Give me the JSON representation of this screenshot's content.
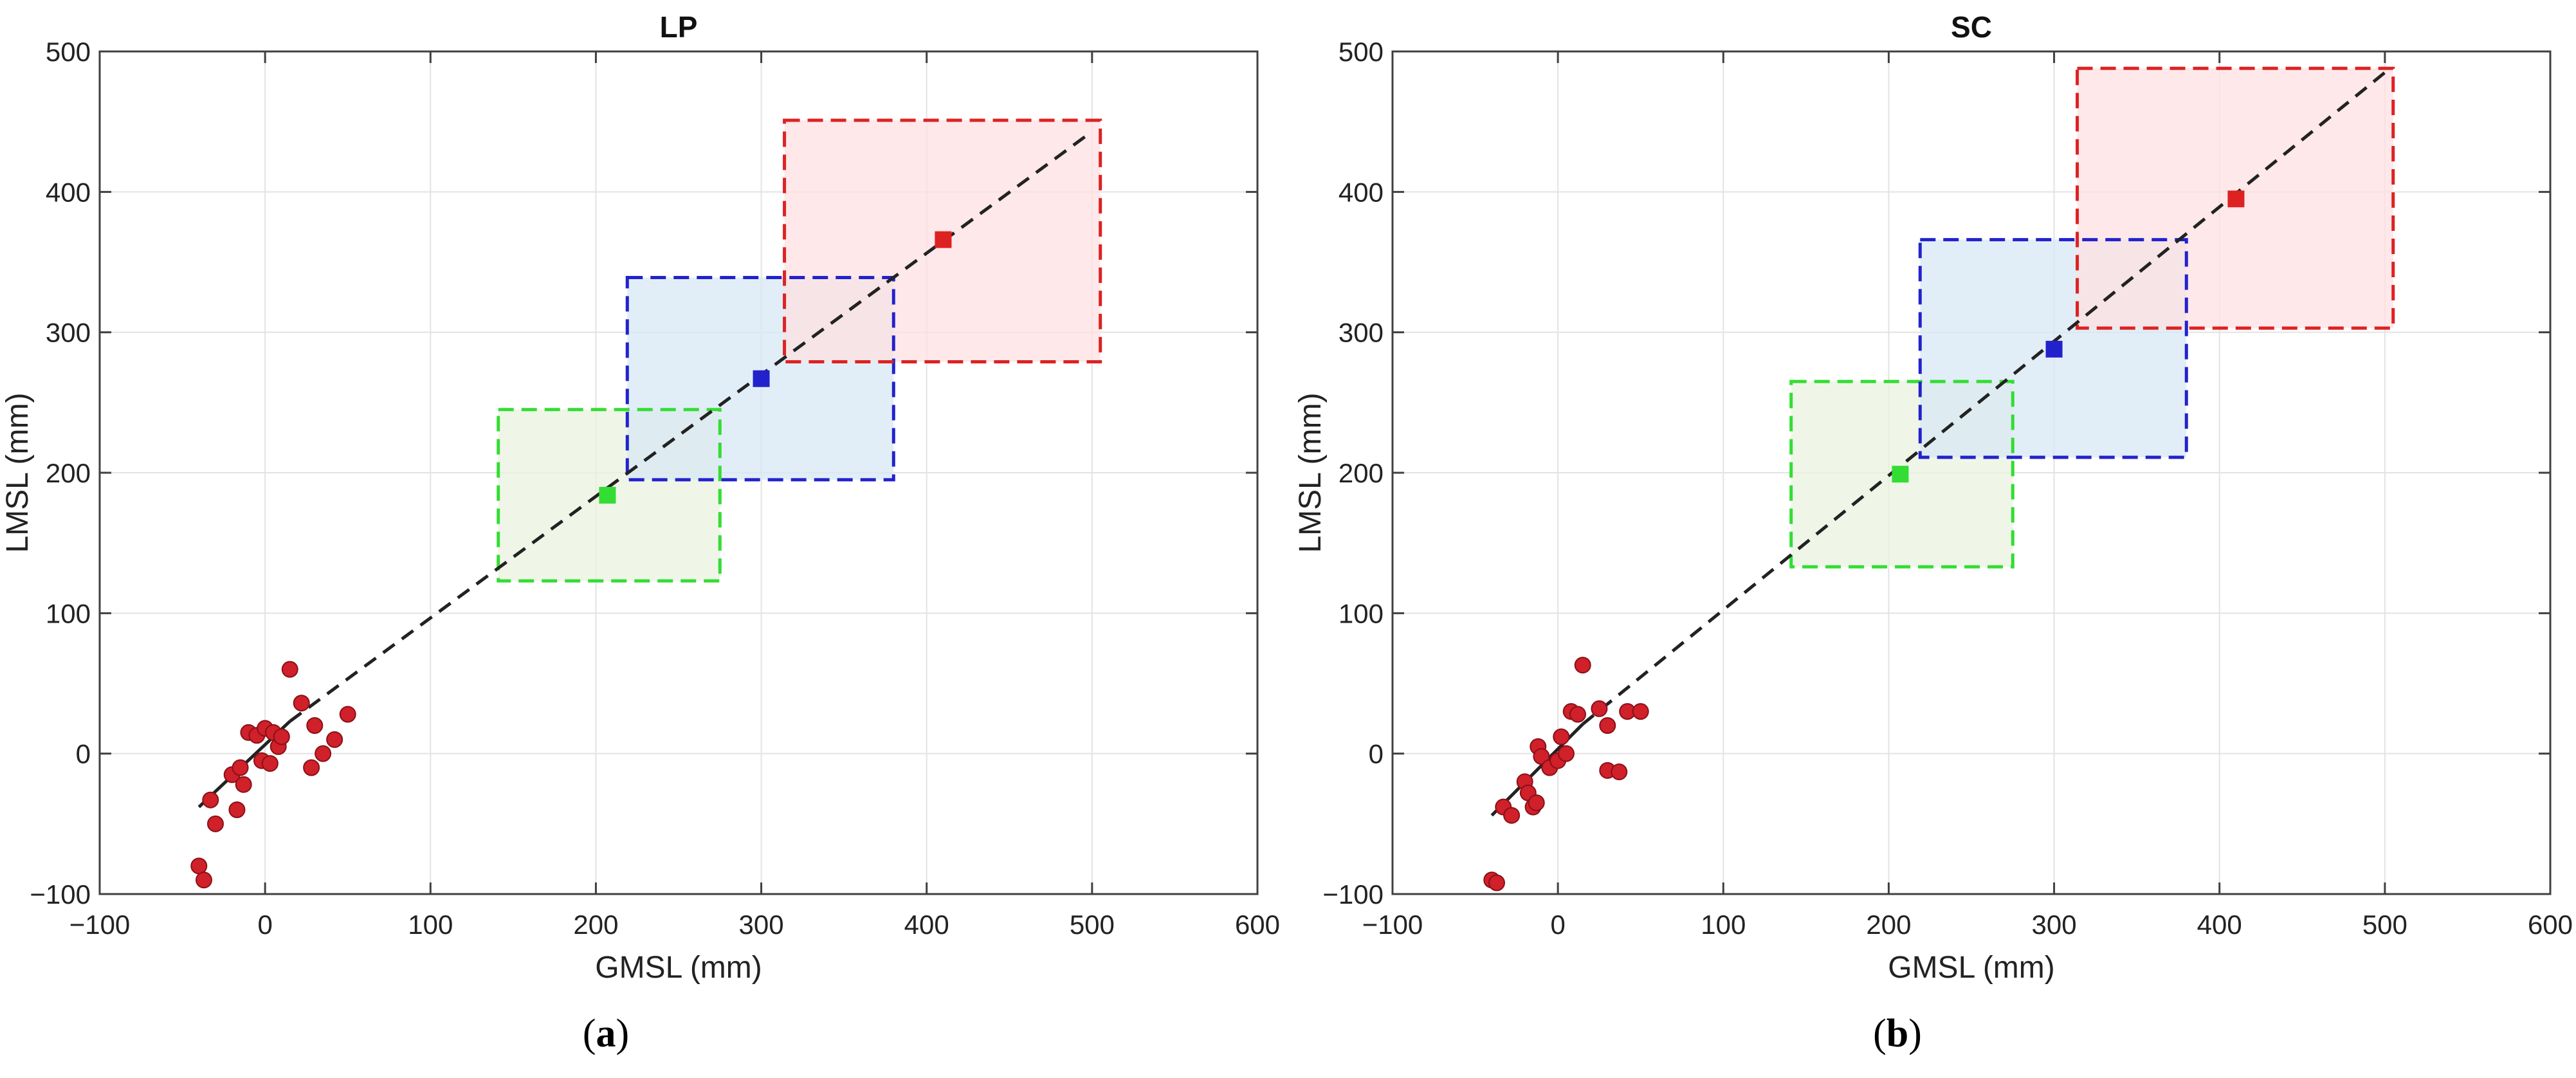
{
  "chart_data": [
    {
      "panel_label": "a",
      "type": "scatter",
      "title": "LP",
      "xlabel": "GMSL (mm)",
      "ylabel": "LMSL (mm)",
      "xlim": [
        -100,
        600
      ],
      "ylim": [
        -100,
        500
      ],
      "xticks": [
        -100,
        0,
        100,
        200,
        300,
        400,
        500,
        600
      ],
      "yticks": [
        -100,
        0,
        100,
        200,
        300,
        400,
        500
      ],
      "grid": true,
      "scatter_points": {
        "color": "#d0202a",
        "points": [
          [
            -40,
            -80
          ],
          [
            -37,
            -90
          ],
          [
            -33,
            -33
          ],
          [
            -30,
            -50
          ],
          [
            -20,
            -15
          ],
          [
            -17,
            -40
          ],
          [
            -15,
            -10
          ],
          [
            -13,
            -22
          ],
          [
            -10,
            15
          ],
          [
            -5,
            13
          ],
          [
            -2,
            -5
          ],
          [
            0,
            18
          ],
          [
            3,
            -7
          ],
          [
            5,
            15
          ],
          [
            8,
            5
          ],
          [
            10,
            12
          ],
          [
            15,
            60
          ],
          [
            22,
            36
          ],
          [
            28,
            -10
          ],
          [
            30,
            20
          ],
          [
            35,
            0
          ],
          [
            42,
            10
          ],
          [
            50,
            28
          ]
        ]
      },
      "fit_line": {
        "color": "#222222",
        "solid": [
          [
            -40,
            -38
          ],
          [
            15,
            23
          ]
        ],
        "dashed": [
          [
            15,
            23
          ],
          [
            500,
            443
          ]
        ]
      },
      "projections": [
        {
          "color": "#33dd33",
          "fill": "#e9f3e0",
          "center": [
            207,
            184
          ],
          "x_range": [
            141,
            275
          ],
          "y_range": [
            123,
            245
          ]
        },
        {
          "color": "#2222cc",
          "fill": "#d8e8f4",
          "center": [
            300,
            267
          ],
          "x_range": [
            219,
            380
          ],
          "y_range": [
            195,
            339
          ]
        },
        {
          "color": "#dd2222",
          "fill": "#fde0e2",
          "center": [
            410,
            366
          ],
          "x_range": [
            314,
            505
          ],
          "y_range": [
            279,
            451
          ]
        }
      ]
    },
    {
      "panel_label": "b",
      "type": "scatter",
      "title": "SC",
      "xlabel": "GMSL (mm)",
      "ylabel": "LMSL (mm)",
      "xlim": [
        -100,
        600
      ],
      "ylim": [
        -100,
        500
      ],
      "xticks": [
        -100,
        0,
        100,
        200,
        300,
        400,
        500,
        600
      ],
      "yticks": [
        -100,
        0,
        100,
        200,
        300,
        400,
        500
      ],
      "grid": true,
      "scatter_points": {
        "color": "#d0202a",
        "points": [
          [
            -40,
            -90
          ],
          [
            -37,
            -92
          ],
          [
            -33,
            -38
          ],
          [
            -28,
            -44
          ],
          [
            -20,
            -20
          ],
          [
            -18,
            -28
          ],
          [
            -15,
            -38
          ],
          [
            -13,
            -35
          ],
          [
            -12,
            5
          ],
          [
            -10,
            -2
          ],
          [
            -5,
            -10
          ],
          [
            0,
            -5
          ],
          [
            2,
            12
          ],
          [
            5,
            0
          ],
          [
            8,
            30
          ],
          [
            12,
            28
          ],
          [
            15,
            63
          ],
          [
            25,
            32
          ],
          [
            30,
            -12
          ],
          [
            30,
            20
          ],
          [
            37,
            -13
          ],
          [
            42,
            30
          ],
          [
            50,
            30
          ]
        ]
      },
      "fit_line": {
        "color": "#222222",
        "solid": [
          [
            -40,
            -44
          ],
          [
            15,
            21
          ]
        ],
        "dashed": [
          [
            15,
            21
          ],
          [
            500,
            485
          ]
        ]
      },
      "projections": [
        {
          "color": "#33dd33",
          "fill": "#e9f3e0",
          "center": [
            207,
            199
          ],
          "x_range": [
            141,
            275
          ],
          "y_range": [
            133,
            265
          ]
        },
        {
          "color": "#2222cc",
          "fill": "#d8e8f4",
          "center": [
            300,
            288
          ],
          "x_range": [
            219,
            380
          ],
          "y_range": [
            211,
            366
          ]
        },
        {
          "color": "#dd2222",
          "fill": "#fde0e2",
          "center": [
            410,
            395
          ],
          "x_range": [
            314,
            505
          ],
          "y_range": [
            303,
            488
          ]
        }
      ]
    }
  ]
}
